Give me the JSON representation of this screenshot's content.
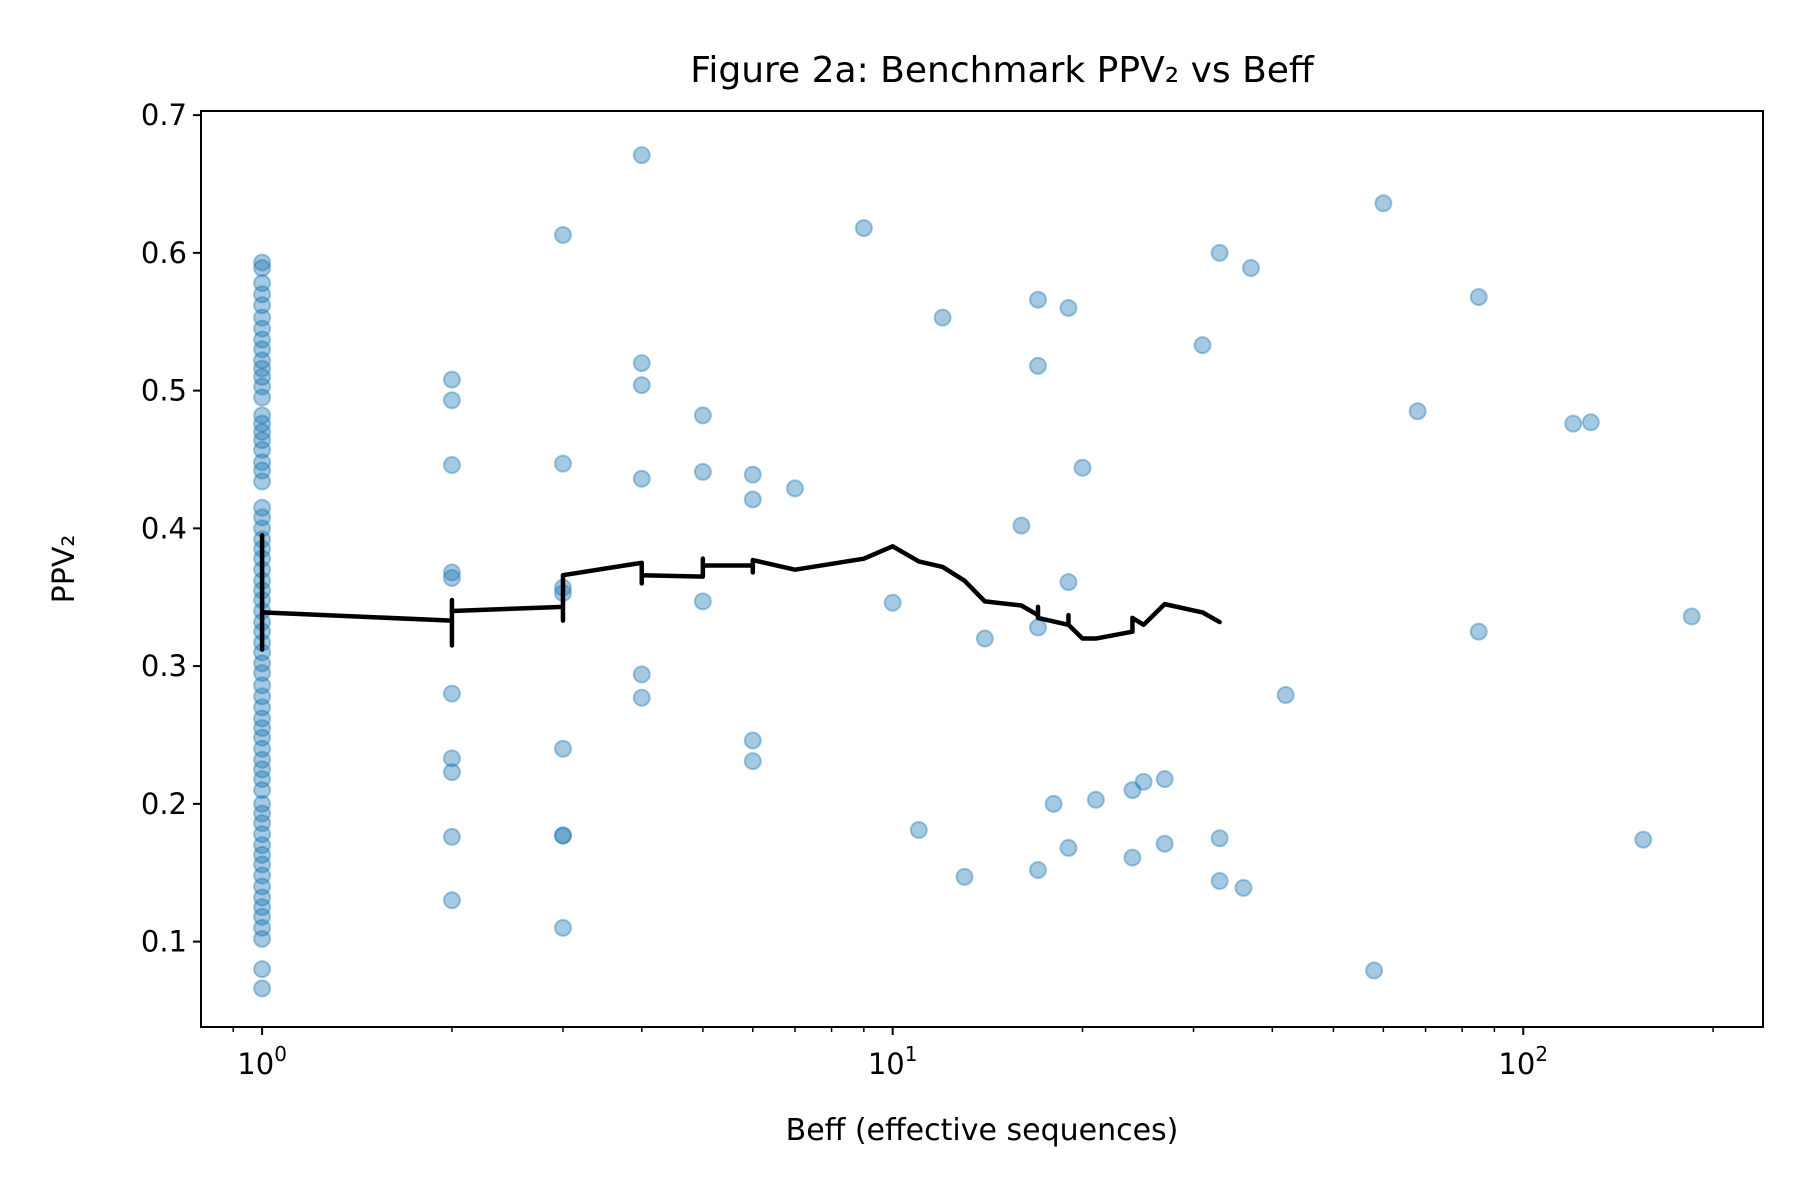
{
  "chart_data": {
    "type": "scatter",
    "title": "Figure 2a: Benchmark PPV₂ vs Beff",
    "xlabel": "Beff (effective sequences)",
    "ylabel": "PPV₂",
    "xscale": "log",
    "xlim": [
      0.8,
      240
    ],
    "ylim": [
      0.038,
      0.703
    ],
    "x_ticks": [
      {
        "value": 1,
        "base": "10",
        "exp": "0"
      },
      {
        "value": 10,
        "base": "10",
        "exp": "1"
      },
      {
        "value": 100,
        "base": "10",
        "exp": "2"
      }
    ],
    "y_ticks": [
      {
        "value": 0.1,
        "label": "0.1"
      },
      {
        "value": 0.2,
        "label": "0.2"
      },
      {
        "value": 0.3,
        "label": "0.3"
      },
      {
        "value": 0.4,
        "label": "0.4"
      },
      {
        "value": 0.5,
        "label": "0.5"
      },
      {
        "value": 0.6,
        "label": "0.6"
      },
      {
        "value": 0.7,
        "label": "0.7"
      }
    ],
    "grid": false,
    "legend": "none",
    "colors": {
      "points": "#1f77b4",
      "trend": "#000000"
    },
    "series": [
      {
        "kind": "scatter",
        "points": [
          [
            1,
            0.593
          ],
          [
            1,
            0.589
          ],
          [
            1,
            0.578
          ],
          [
            1,
            0.57
          ],
          [
            1,
            0.562
          ],
          [
            1,
            0.553
          ],
          [
            1,
            0.545
          ],
          [
            1,
            0.537
          ],
          [
            1,
            0.53
          ],
          [
            1,
            0.522
          ],
          [
            1,
            0.516
          ],
          [
            1,
            0.51
          ],
          [
            1,
            0.503
          ],
          [
            1,
            0.495
          ],
          [
            1,
            0.482
          ],
          [
            1,
            0.476
          ],
          [
            1,
            0.47
          ],
          [
            1,
            0.464
          ],
          [
            1,
            0.457
          ],
          [
            1,
            0.448
          ],
          [
            1,
            0.442
          ],
          [
            1,
            0.434
          ],
          [
            1,
            0.415
          ],
          [
            1,
            0.408
          ],
          [
            1,
            0.4
          ],
          [
            1,
            0.392
          ],
          [
            1,
            0.385
          ],
          [
            1,
            0.378
          ],
          [
            1,
            0.37
          ],
          [
            1,
            0.362
          ],
          [
            1,
            0.355
          ],
          [
            1,
            0.348
          ],
          [
            1,
            0.34
          ],
          [
            1,
            0.332
          ],
          [
            1,
            0.325
          ],
          [
            1,
            0.317
          ],
          [
            1,
            0.31
          ],
          [
            1,
            0.302
          ],
          [
            1,
            0.295
          ],
          [
            1,
            0.286
          ],
          [
            1,
            0.278
          ],
          [
            1,
            0.27
          ],
          [
            1,
            0.262
          ],
          [
            1,
            0.255
          ],
          [
            1,
            0.248
          ],
          [
            1,
            0.24
          ],
          [
            1,
            0.232
          ],
          [
            1,
            0.225
          ],
          [
            1,
            0.218
          ],
          [
            1,
            0.21
          ],
          [
            1,
            0.2
          ],
          [
            1,
            0.193
          ],
          [
            1,
            0.186
          ],
          [
            1,
            0.178
          ],
          [
            1,
            0.17
          ],
          [
            1,
            0.163
          ],
          [
            1,
            0.156
          ],
          [
            1,
            0.148
          ],
          [
            1,
            0.14
          ],
          [
            1,
            0.132
          ],
          [
            1,
            0.125
          ],
          [
            1,
            0.118
          ],
          [
            1,
            0.11
          ],
          [
            1,
            0.102
          ],
          [
            1,
            0.08
          ],
          [
            1,
            0.066
          ],
          [
            2,
            0.508
          ],
          [
            2,
            0.493
          ],
          [
            2,
            0.446
          ],
          [
            2,
            0.368
          ],
          [
            2,
            0.364
          ],
          [
            2,
            0.28
          ],
          [
            2,
            0.233
          ],
          [
            2,
            0.223
          ],
          [
            2,
            0.176
          ],
          [
            2,
            0.13
          ],
          [
            3,
            0.613
          ],
          [
            3,
            0.447
          ],
          [
            3,
            0.357
          ],
          [
            3,
            0.353
          ],
          [
            3,
            0.24
          ],
          [
            3,
            0.177
          ],
          [
            3,
            0.177
          ],
          [
            3,
            0.11
          ],
          [
            4,
            0.671
          ],
          [
            4,
            0.52
          ],
          [
            4,
            0.504
          ],
          [
            4,
            0.436
          ],
          [
            4,
            0.294
          ],
          [
            4,
            0.277
          ],
          [
            5,
            0.482
          ],
          [
            5,
            0.441
          ],
          [
            5,
            0.347
          ],
          [
            6,
            0.439
          ],
          [
            6,
            0.421
          ],
          [
            6,
            0.246
          ],
          [
            6,
            0.231
          ],
          [
            7,
            0.429
          ],
          [
            9,
            0.618
          ],
          [
            10,
            0.346
          ],
          [
            11,
            0.181
          ],
          [
            12,
            0.553
          ],
          [
            13,
            0.147
          ],
          [
            14,
            0.32
          ],
          [
            16,
            0.402
          ],
          [
            17,
            0.566
          ],
          [
            17,
            0.518
          ],
          [
            17,
            0.328
          ],
          [
            17,
            0.152
          ],
          [
            18,
            0.2
          ],
          [
            19,
            0.56
          ],
          [
            19,
            0.361
          ],
          [
            19,
            0.168
          ],
          [
            20,
            0.444
          ],
          [
            21,
            0.203
          ],
          [
            24,
            0.21
          ],
          [
            24,
            0.161
          ],
          [
            25,
            0.216
          ],
          [
            27,
            0.218
          ],
          [
            27,
            0.171
          ],
          [
            31,
            0.533
          ],
          [
            33,
            0.6
          ],
          [
            33,
            0.175
          ],
          [
            33,
            0.144
          ],
          [
            36,
            0.139
          ],
          [
            37,
            0.589
          ],
          [
            42,
            0.279
          ],
          [
            58,
            0.079
          ],
          [
            60,
            0.636
          ],
          [
            68,
            0.485
          ],
          [
            85,
            0.568
          ],
          [
            85,
            0.325
          ],
          [
            120,
            0.476
          ],
          [
            128,
            0.477
          ],
          [
            155,
            0.174
          ],
          [
            185,
            0.336
          ]
        ]
      },
      {
        "kind": "line",
        "points": [
          [
            1,
            0.395
          ],
          [
            1,
            0.312
          ],
          [
            1,
            0.339
          ],
          [
            2,
            0.333
          ],
          [
            2,
            0.315
          ],
          [
            2,
            0.348
          ],
          [
            2,
            0.34
          ],
          [
            3,
            0.343
          ],
          [
            3,
            0.333
          ],
          [
            3,
            0.366
          ],
          [
            4,
            0.375
          ],
          [
            4,
            0.36
          ],
          [
            4,
            0.366
          ],
          [
            5,
            0.365
          ],
          [
            5,
            0.378
          ],
          [
            5,
            0.373
          ],
          [
            6,
            0.373
          ],
          [
            6,
            0.368
          ],
          [
            6,
            0.377
          ],
          [
            7,
            0.37
          ],
          [
            9,
            0.378
          ],
          [
            10,
            0.387
          ],
          [
            11,
            0.376
          ],
          [
            12,
            0.372
          ],
          [
            13,
            0.362
          ],
          [
            14,
            0.347
          ],
          [
            16,
            0.344
          ],
          [
            17,
            0.337
          ],
          [
            17,
            0.343
          ],
          [
            17,
            0.335
          ],
          [
            19,
            0.33
          ],
          [
            19,
            0.337
          ],
          [
            19,
            0.33
          ],
          [
            20,
            0.32
          ],
          [
            21,
            0.32
          ],
          [
            24,
            0.325
          ],
          [
            24,
            0.335
          ],
          [
            25,
            0.33
          ],
          [
            27,
            0.345
          ],
          [
            31,
            0.339
          ],
          [
            33,
            0.332
          ]
        ]
      }
    ]
  }
}
